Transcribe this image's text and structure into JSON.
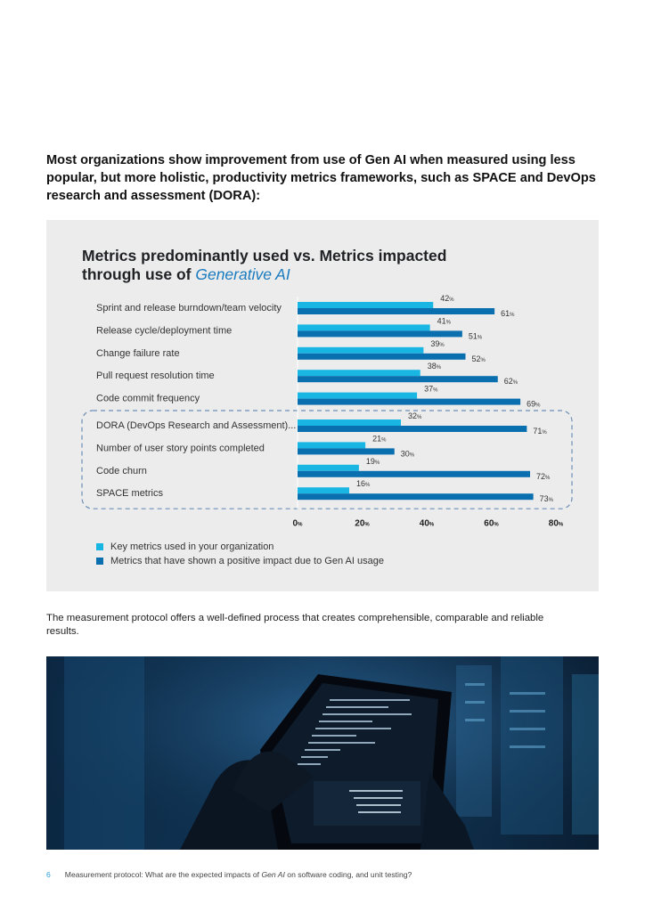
{
  "intro": "Most organizations show improvement from use of Gen AI when measured using less popular, but more holistic, productivity metrics frameworks, such as SPACE and DevOps research and assessment (DORA):",
  "colors": {
    "key": "#1ab6e3",
    "impact": "#0a6fae",
    "panel": "#ececec",
    "highlight_border": "#6b8fb7"
  },
  "chart_data": {
    "type": "bar",
    "orientation": "horizontal",
    "title_prefix": "Metrics predominantly used vs. Metrics impacted through use of",
    "title_accent": "Generative AI",
    "categories": [
      "Sprint and release burndown/team velocity",
      "Release cycle/deployment time",
      "Change failure rate",
      "Pull request resolution time",
      "Code commit frequency",
      "DORA (DevOps Research and Assessment)...",
      "Number of user story points completed",
      "Code churn",
      "SPACE metrics"
    ],
    "series": [
      {
        "name": "Key metrics used in your organization",
        "values": [
          42,
          41,
          39,
          38,
          37,
          32,
          21,
          19,
          16
        ]
      },
      {
        "name": "Metrics that have shown a positive impact due to Gen AI usage",
        "values": [
          61,
          51,
          52,
          62,
          69,
          71,
          30,
          72,
          73
        ]
      }
    ],
    "xlim": [
      0,
      80
    ],
    "xticks": [
      0,
      20,
      40,
      60,
      80
    ],
    "highlighted": [
      5,
      6,
      7,
      8
    ],
    "value_suffix": "%",
    "legend_position": "bottom-left"
  },
  "paragraph": "The measurement protocol offers a well-defined process that creates comprehensible, comparable and reliable results.",
  "footer": {
    "page_number": "6",
    "text_before": "Measurement protocol: What are the expected impacts of",
    "text_italic": "Gen AI",
    "text_after": "on software coding, and unit testing?"
  }
}
